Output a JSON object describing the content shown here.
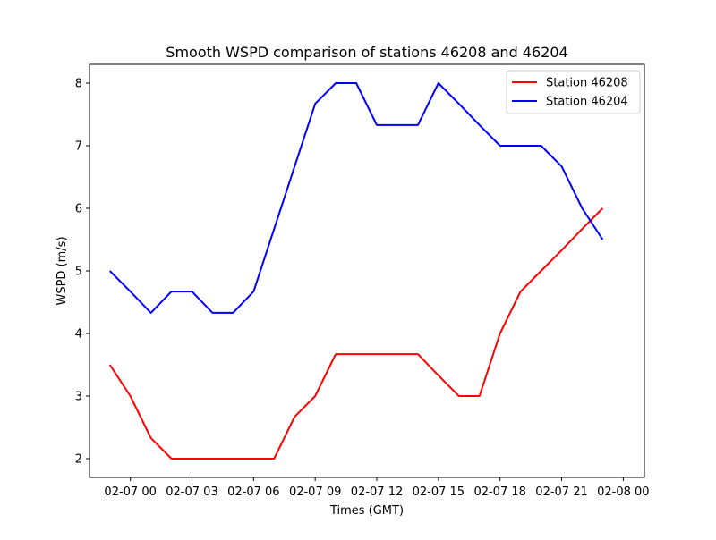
{
  "chart_data": {
    "type": "line",
    "title": "Smooth WSPD comparison of stations 46208 and 46204",
    "xlabel": "Times (GMT)",
    "ylabel": "WSPD (m/s)",
    "x": [
      "02-06 23:00",
      "02-07 00:00",
      "02-07 01:00",
      "02-07 02:00",
      "02-07 03:00",
      "02-07 04:00",
      "02-07 05:00",
      "02-07 06:00",
      "02-07 07:00",
      "02-07 08:00",
      "02-07 09:00",
      "02-07 10:00",
      "02-07 11:00",
      "02-07 12:00",
      "02-07 13:00",
      "02-07 14:00",
      "02-07 15:00",
      "02-07 16:00",
      "02-07 17:00",
      "02-07 18:00",
      "02-07 19:00",
      "02-07 20:00",
      "02-07 21:00",
      "02-07 22:00",
      "02-07 23:00"
    ],
    "xticks": [
      "02-07 00",
      "02-07 03",
      "02-07 06",
      "02-07 09",
      "02-07 12",
      "02-07 15",
      "02-07 18",
      "02-07 21",
      "02-08 00"
    ],
    "yticks": [
      2,
      3,
      4,
      5,
      6,
      7,
      8
    ],
    "xlim_hours": [
      -1.99,
      25.03
    ],
    "ylim": [
      1.7,
      8.3
    ],
    "grid": false,
    "legend_position": "upper right",
    "series": [
      {
        "name": "Station 46208",
        "color": "#ff0000",
        "values": [
          3.5,
          3.0,
          2.33,
          2.0,
          2.0,
          2.0,
          2.0,
          2.0,
          2.0,
          2.67,
          3.0,
          3.67,
          3.67,
          3.67,
          3.67,
          3.67,
          3.33,
          3.0,
          3.0,
          4.0,
          4.67,
          5.0,
          5.33,
          5.67,
          6.0
        ]
      },
      {
        "name": "Station 46204",
        "color": "#0000ff",
        "values": [
          5.0,
          4.67,
          4.33,
          4.67,
          4.67,
          4.33,
          4.33,
          4.67,
          5.67,
          6.67,
          7.67,
          8.0,
          8.0,
          7.33,
          7.33,
          7.33,
          8.0,
          7.67,
          7.33,
          7.0,
          7.0,
          7.0,
          6.67,
          6.0,
          5.5
        ]
      }
    ]
  }
}
